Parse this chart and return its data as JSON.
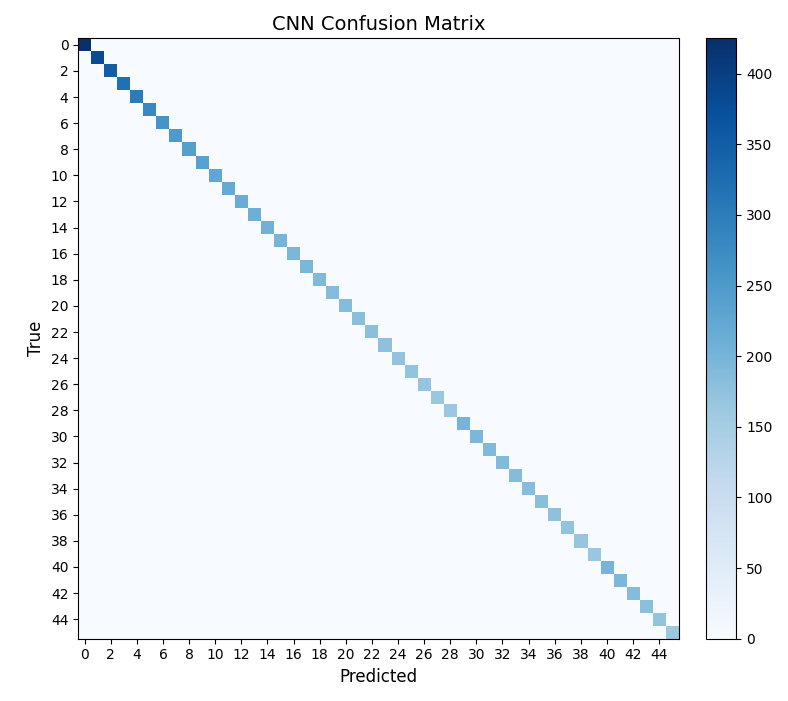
{
  "title": "CNN Confusion Matrix",
  "xlabel": "Predicted",
  "ylabel": "True",
  "n_classes": 46,
  "diagonal_values": [
    425,
    380,
    350,
    320,
    300,
    280,
    260,
    250,
    240,
    235,
    225,
    220,
    215,
    210,
    205,
    200,
    195,
    195,
    190,
    185,
    185,
    180,
    178,
    175,
    172,
    170,
    168,
    165,
    162,
    200,
    195,
    190,
    188,
    185,
    183,
    180,
    175,
    170,
    168,
    165,
    200,
    195,
    185,
    178,
    170,
    160
  ],
  "tick_step": 2,
  "cmap": "Blues",
  "vmin": 0,
  "vmax": 425,
  "colorbar_ticks": [
    0,
    50,
    100,
    150,
    200,
    250,
    300,
    350,
    400
  ],
  "figsize": [
    7.88,
    7.01
  ],
  "dpi": 100,
  "title_fontsize": 14,
  "label_fontsize": 12,
  "tick_fontsize": 10
}
